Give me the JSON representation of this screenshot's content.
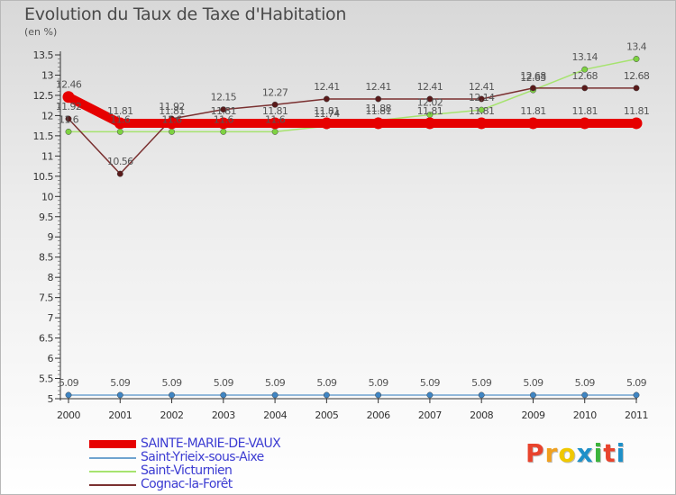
{
  "title": "Evolution du Taux de Taxe d'Habitation",
  "unit_label": "(en %)",
  "logo": {
    "text": "Proxiti",
    "colors": [
      "#e8432d",
      "#f0a01e",
      "#f0c800",
      "#1e90c8",
      "#3cb43c",
      "#e8432d",
      "#1e90c8"
    ]
  },
  "chart_data": {
    "type": "line",
    "title": "Evolution du Taux de Taxe d'Habitation",
    "xlabel": "",
    "ylabel": "(en %)",
    "ylim": [
      5,
      13.5
    ],
    "yticks": [
      "5",
      "5.5",
      "6",
      "6.5",
      "7",
      "7.5",
      "8",
      "8.5",
      "9",
      "9.5",
      "10",
      "10.5",
      "11",
      "11.5",
      "12",
      "12.5",
      "13",
      "13.5"
    ],
    "x": [
      "2000",
      "2001",
      "2002",
      "2003",
      "2004",
      "2005",
      "2006",
      "2007",
      "2008",
      "2009",
      "2010",
      "2011"
    ],
    "grid": false,
    "legend_position": "bottom-left",
    "series": [
      {
        "name": "SAINTE-MARIE-DE-VAUX",
        "color": "#e60000",
        "width": 10,
        "marker_color": "#e60000",
        "values": [
          12.46,
          11.81,
          11.81,
          11.81,
          11.81,
          11.81,
          11.81,
          11.81,
          11.81,
          11.81,
          11.81,
          11.81
        ],
        "labels": [
          "12.46",
          "11.81",
          "11.81",
          "11.81",
          "11.81",
          "11.81",
          "11.81",
          "11.81",
          "11.81",
          "11.81",
          "11.81",
          "11.81"
        ]
      },
      {
        "name": "Saint-Yrieix-sous-Aixe",
        "color": "#6fa3cf",
        "width": 1.5,
        "marker_color": "#3f85c3",
        "values": [
          5.09,
          5.09,
          5.09,
          5.09,
          5.09,
          5.09,
          5.09,
          5.09,
          5.09,
          5.09,
          5.09,
          5.09
        ],
        "labels": [
          "5.09",
          "5.09",
          "5.09",
          "5.09",
          "5.09",
          "5.09",
          "5.09",
          "5.09",
          "5.09",
          "5.09",
          "5.09",
          "5.09"
        ]
      },
      {
        "name": "Saint-Victurnien",
        "color": "#a6e36f",
        "width": 1.5,
        "marker_color": "#7ed242",
        "values": [
          11.6,
          11.6,
          11.6,
          11.6,
          11.6,
          11.74,
          11.88,
          12.02,
          12.14,
          12.63,
          13.14,
          13.4
        ],
        "labels": [
          "11.6",
          "11.6",
          "11.6",
          "11.6",
          "11.6",
          "11.74",
          "11.88",
          "12.02",
          "12.14",
          "12.63",
          "13.14",
          "13.4"
        ]
      },
      {
        "name": "Cognac-la-Forêt",
        "color": "#7a3030",
        "width": 1.5,
        "marker_color": "#5a1a1a",
        "values": [
          11.92,
          10.56,
          11.92,
          12.15,
          12.27,
          12.41,
          12.41,
          12.41,
          12.41,
          12.68,
          12.68,
          12.68
        ],
        "labels": [
          "11.92",
          "10.56",
          "11.92",
          "12.15",
          "12.27",
          "12.41",
          "12.41",
          "12.41",
          "12.41",
          "12.68",
          "12.68",
          "12.68"
        ]
      }
    ]
  }
}
